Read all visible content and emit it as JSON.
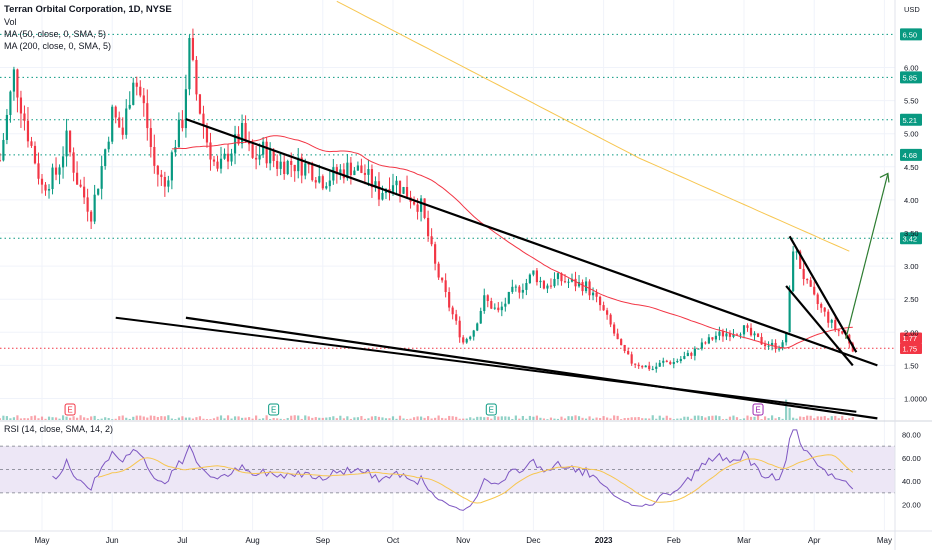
{
  "legend": {
    "symbol": "Terran Orbital Corporation, 1D, NYSE",
    "vol": "Vol",
    "ma50": "MA (50, close, 0, SMA, 5)",
    "ma200": "MA (200, close, 0, SMA, 5)",
    "rsi": "RSI (14, close, SMA, 14, 2)"
  },
  "chart_data": {
    "type": "candlestick",
    "currency": "USD",
    "x_labels": [
      "May",
      "Jun",
      "Jul",
      "Aug",
      "Sep",
      "Oct",
      "Nov",
      "Dec",
      "2023",
      "Feb",
      "Mar",
      "Apr",
      "May"
    ],
    "y_ticks": [
      "6.00",
      "5.50",
      "5.00",
      "4.50",
      "4.00",
      "3.50",
      "3.00",
      "2.50",
      "2.00",
      "1.50",
      "1.0000"
    ],
    "y_tick_values": [
      6.0,
      5.5,
      5.0,
      4.5,
      4.0,
      3.5,
      3.0,
      2.5,
      2.0,
      1.5,
      1.0
    ],
    "horizontal_levels": [
      {
        "label": "6.50",
        "value": 6.5
      },
      {
        "label": "5.85",
        "value": 5.85
      },
      {
        "label": "5.21",
        "value": 5.21
      },
      {
        "label": "4.68",
        "value": 4.68
      },
      {
        "label": "3.42",
        "value": 3.42
      }
    ],
    "price_labels": [
      {
        "label": "1.77",
        "value": 1.77,
        "color": "#f23645"
      },
      {
        "label": "1.75",
        "value": 1.75,
        "color": "#f23645"
      }
    ],
    "earnings_markers": [
      {
        "label": "E",
        "month_pos": 0.4,
        "color": "#f23645"
      },
      {
        "label": "E",
        "month_pos": 3.3,
        "color": "#089981"
      },
      {
        "label": "E",
        "month_pos": 6.4,
        "color": "#089981"
      },
      {
        "label": "E",
        "month_pos": 10.2,
        "color": "#9c27b0"
      }
    ],
    "rsi": {
      "y_ticks": [
        "80.00",
        "60.00",
        "40.00",
        "20.00"
      ],
      "y_tick_values": [
        80,
        60,
        40,
        20
      ],
      "band": [
        30,
        70
      ]
    },
    "colors": {
      "up": "#089981",
      "down": "#f23645",
      "ma50": "#f23645",
      "ma200": "#f7c650",
      "levels": "#089981",
      "arrow": "#2e7d32",
      "rsi_line": "#7e57c2",
      "rsi_ma": "#f7c650",
      "rsi_band": "#ede7f6"
    }
  }
}
